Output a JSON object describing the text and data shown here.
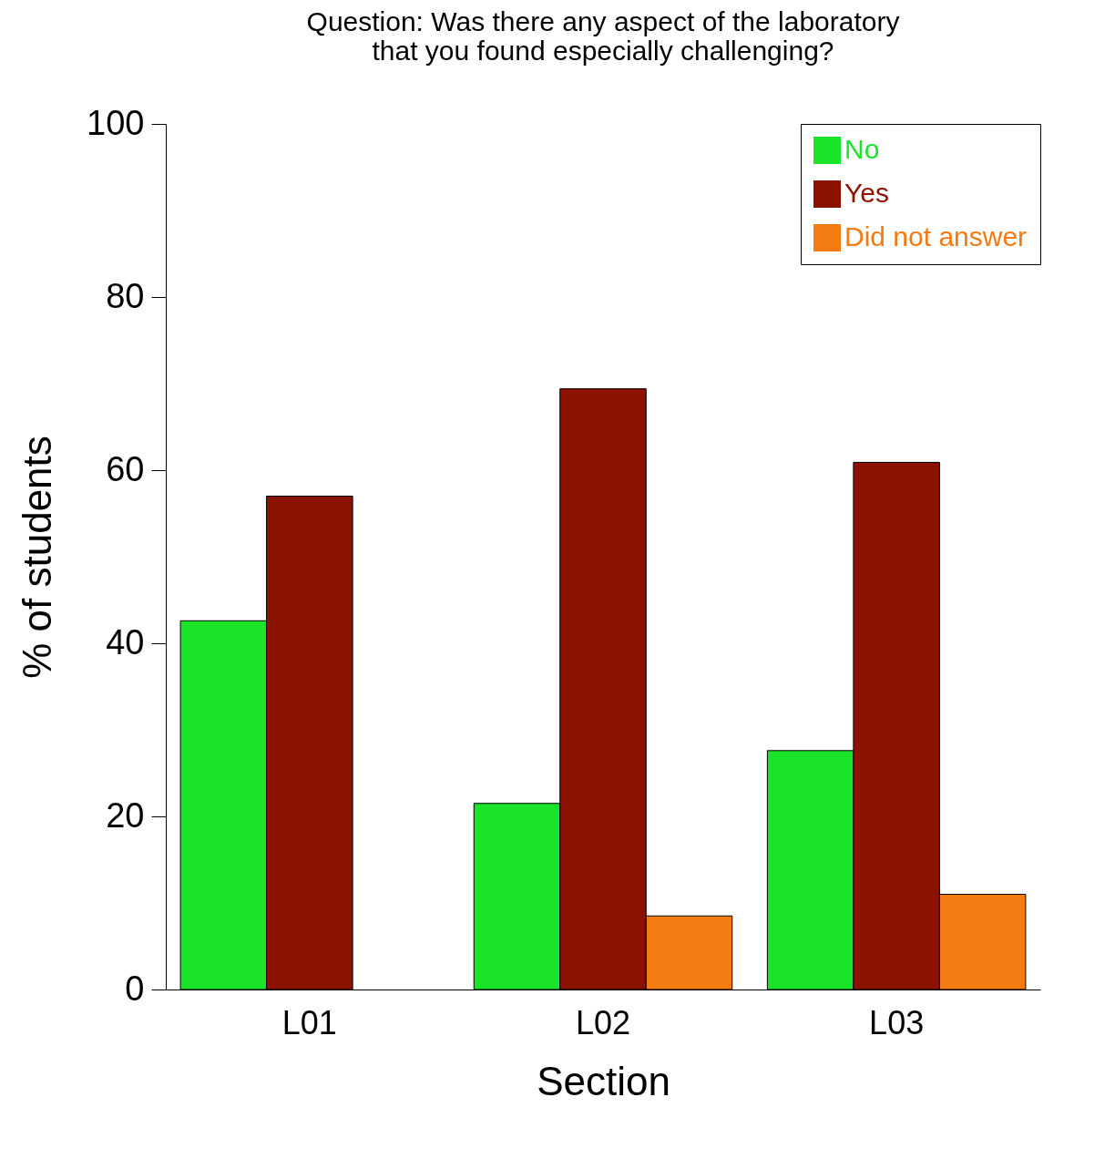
{
  "chart_data": {
    "type": "bar",
    "title": "Question: Was there any aspect of the laboratory\nthat you found especially challenging?",
    "xlabel": "Section",
    "ylabel": "% of students",
    "categories": [
      "L01",
      "L02",
      "L03"
    ],
    "series": [
      {
        "name": "No",
        "color": "#19e42a",
        "values": [
          42.6,
          21.5,
          27.6
        ]
      },
      {
        "name": "Yes",
        "color": "#8b1100",
        "values": [
          57.0,
          69.4,
          60.9
        ]
      },
      {
        "name": "Did not answer",
        "color": "#f47a12",
        "values": [
          null,
          8.5,
          11.0
        ]
      }
    ],
    "ylim": [
      0,
      100
    ],
    "yticks": [
      0,
      20,
      40,
      60,
      80,
      100
    ],
    "grid": false,
    "legend": "top right"
  }
}
